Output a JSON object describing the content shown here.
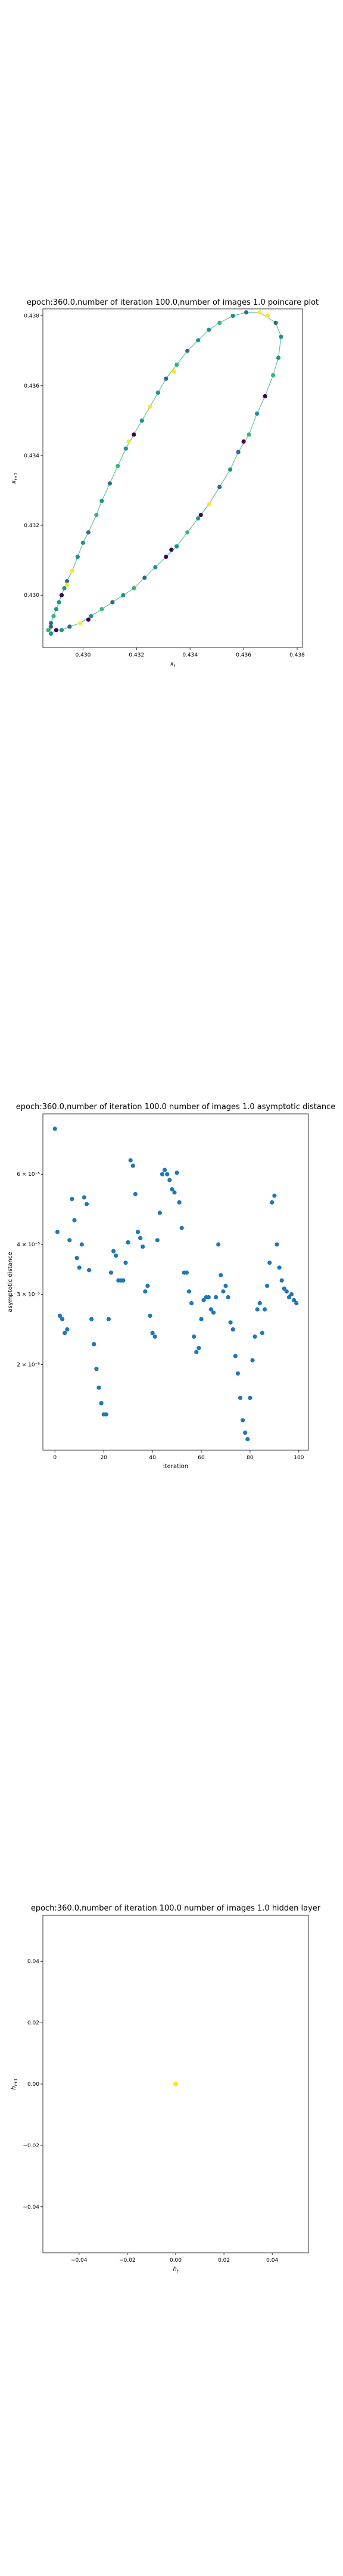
{
  "chart_data": [
    {
      "type": "scatter",
      "title": "epoch:360.0,number of iteration 100.0,number of images 1.0 poincare plot",
      "xlabel": "x_t",
      "ylabel": "x_{t+1}",
      "xlim": [
        0.4285,
        0.4382
      ],
      "ylim": [
        0.4285,
        0.4382
      ],
      "xticks": [
        0.43,
        0.432,
        0.434,
        0.436,
        0.438
      ],
      "yticks": [
        0.43,
        0.432,
        0.434,
        0.436,
        0.438
      ],
      "xtick_labels": [
        "0.430",
        "0.432",
        "0.434",
        "0.436",
        "0.438"
      ],
      "ytick_labels": [
        "0.430",
        "0.432",
        "0.434",
        "0.436",
        "0.438"
      ],
      "colormap": [
        "#440154",
        "#31688e",
        "#21918c",
        "#35b779",
        "#fde725"
      ],
      "loop_color": "#35b779",
      "points": [
        [
          0.4288,
          0.4292,
          0.2
        ],
        [
          0.4289,
          0.4294,
          0.8
        ],
        [
          0.429,
          0.4296,
          0.4
        ],
        [
          0.4291,
          0.4298,
          0.6
        ],
        [
          0.4292,
          0.43,
          0.1
        ],
        [
          0.4293,
          0.4302,
          0.5
        ],
        [
          0.4294,
          0.4304,
          0.3
        ],
        [
          0.4296,
          0.4307,
          0.9
        ],
        [
          0.4298,
          0.4311,
          0.4
        ],
        [
          0.43,
          0.4315,
          0.6
        ],
        [
          0.4302,
          0.4318,
          0.2
        ],
        [
          0.4305,
          0.4323,
          0.7
        ],
        [
          0.4307,
          0.4327,
          0.5
        ],
        [
          0.431,
          0.4332,
          0.3
        ],
        [
          0.4313,
          0.4337,
          0.8
        ],
        [
          0.4316,
          0.4342,
          0.4
        ],
        [
          0.4319,
          0.4346,
          0.1
        ],
        [
          0.4322,
          0.435,
          0.6
        ],
        [
          0.4325,
          0.4354,
          0.9
        ],
        [
          0.4328,
          0.4358,
          0.5
        ],
        [
          0.4331,
          0.4362,
          0.3
        ],
        [
          0.4335,
          0.4366,
          0.7
        ],
        [
          0.4339,
          0.437,
          0.2
        ],
        [
          0.4343,
          0.4373,
          0.6
        ],
        [
          0.4347,
          0.4376,
          0.4
        ],
        [
          0.4351,
          0.4378,
          0.8
        ],
        [
          0.4356,
          0.438,
          0.5
        ],
        [
          0.4361,
          0.4381,
          0.3
        ],
        [
          0.4366,
          0.4381,
          0.9
        ],
        [
          0.4372,
          0.4378,
          0.2
        ],
        [
          0.4374,
          0.4374,
          0.6
        ],
        [
          0.4373,
          0.4368,
          0.4
        ],
        [
          0.4371,
          0.4363,
          0.7
        ],
        [
          0.4368,
          0.4357,
          0.1
        ],
        [
          0.4365,
          0.4352,
          0.5
        ],
        [
          0.4362,
          0.4346,
          0.8
        ],
        [
          0.4358,
          0.4341,
          0.3
        ],
        [
          0.4355,
          0.4336,
          0.6
        ],
        [
          0.4351,
          0.4331,
          0.2
        ],
        [
          0.4347,
          0.4326,
          0.9
        ],
        [
          0.4343,
          0.4322,
          0.4
        ],
        [
          0.4339,
          0.4318,
          0.7
        ],
        [
          0.4335,
          0.4314,
          0.5
        ],
        [
          0.4331,
          0.4311,
          0.1
        ],
        [
          0.4327,
          0.4308,
          0.6
        ],
        [
          0.4323,
          0.4305,
          0.3
        ],
        [
          0.4319,
          0.4302,
          0.8
        ],
        [
          0.4315,
          0.43,
          0.4
        ],
        [
          0.4311,
          0.4298,
          0.2
        ],
        [
          0.4307,
          0.4296,
          0.7
        ],
        [
          0.4303,
          0.4294,
          0.5
        ],
        [
          0.4299,
          0.4292,
          0.9
        ],
        [
          0.4295,
          0.4291,
          0.3
        ],
        [
          0.4292,
          0.429,
          0.6
        ],
        [
          0.429,
          0.429,
          0.1
        ],
        [
          0.4288,
          0.4289,
          0.5
        ],
        [
          0.4287,
          0.429,
          0.8
        ],
        [
          0.4288,
          0.4291,
          0.2
        ],
        [
          0.4294,
          0.4303,
          0.9
        ],
        [
          0.4317,
          0.4344,
          0.95
        ],
        [
          0.4334,
          0.4364,
          0.92
        ],
        [
          0.4369,
          0.438,
          0.97
        ],
        [
          0.436,
          0.4344,
          0.1
        ],
        [
          0.4333,
          0.4313,
          0.05
        ],
        [
          0.4344,
          0.4323,
          0.0
        ],
        [
          0.4302,
          0.4293,
          0.03
        ]
      ]
    },
    {
      "type": "scatter",
      "title": "epoch:360.0,number of iteration 100.0  number of images 1.0 asymptotic distance",
      "xlabel": "iteration",
      "ylabel": "asymptotic distance",
      "xlim": [
        -4.95,
        103.95
      ],
      "yscale": "log",
      "ylim": [
        1.22e-05,
        8.5e-05
      ],
      "xticks": [
        0,
        20,
        40,
        60,
        80,
        100
      ],
      "xtick_labels": [
        "0",
        "20",
        "40",
        "60",
        "80",
        "100"
      ],
      "yticks": [
        2e-05,
        3e-05,
        4e-05,
        6e-05
      ],
      "ytick_labels": [
        "2 × 10⁻⁵",
        "3 × 10⁻⁵",
        "4 × 10⁻⁵",
        "6 × 10⁻⁵"
      ],
      "marker_color": "#1f77b4",
      "x": [
        0,
        1,
        2,
        3,
        4,
        5,
        6,
        7,
        8,
        9,
        10,
        11,
        12,
        13,
        14,
        15,
        16,
        17,
        18,
        19,
        20,
        21,
        22,
        23,
        24,
        25,
        26,
        27,
        28,
        29,
        30,
        31,
        32,
        33,
        34,
        35,
        36,
        37,
        38,
        39,
        40,
        41,
        42,
        43,
        44,
        45,
        46,
        47,
        48,
        49,
        50,
        51,
        52,
        53,
        54,
        55,
        56,
        57,
        58,
        59,
        60,
        61,
        62,
        63,
        64,
        65,
        66,
        67,
        68,
        69,
        70,
        71,
        72,
        73,
        74,
        75,
        76,
        77,
        78,
        79,
        80,
        81,
        82,
        83,
        84,
        85,
        86,
        87,
        88,
        89,
        90,
        91,
        92,
        93,
        94,
        95,
        96,
        97,
        98,
        99
      ],
      "y": [
        7.8e-05,
        4.3e-05,
        2.65e-05,
        2.6e-05,
        2.4e-05,
        2.45e-05,
        4.1e-05,
        5.2e-05,
        4.6e-05,
        3.7e-05,
        3.5e-05,
        4e-05,
        5.25e-05,
        5.05e-05,
        3.45e-05,
        2.6e-05,
        2.25e-05,
        1.95e-05,
        1.75e-05,
        1.6e-05,
        1.5e-05,
        1.5e-05,
        2.6e-05,
        3.4e-05,
        3.85e-05,
        3.75e-05,
        3.25e-05,
        3.25e-05,
        3.25e-05,
        3.6e-05,
        4.05e-05,
        6.5e-05,
        6.3e-05,
        5.35e-05,
        4.3e-05,
        4.15e-05,
        3.95e-05,
        3.05e-05,
        3.15e-05,
        2.65e-05,
        2.4e-05,
        2.35e-05,
        4.1e-05,
        4.8e-05,
        6e-05,
        6.15e-05,
        6e-05,
        5.8e-05,
        5.5e-05,
        5.4e-05,
        6.05e-05,
        5.1e-05,
        4.4e-05,
        3.4e-05,
        3.4e-05,
        3.05e-05,
        2.85e-05,
        2.35e-05,
        2.15e-05,
        2.2e-05,
        2.6e-05,
        2.9e-05,
        2.95e-05,
        2.95e-05,
        2.75e-05,
        2.7e-05,
        2.95e-05,
        4e-05,
        3.35e-05,
        3.05e-05,
        3.15e-05,
        2.95e-05,
        2.55e-05,
        2.45e-05,
        2.1e-05,
        1.9e-05,
        1.65e-05,
        1.45e-05,
        1.35e-05,
        1.3e-05,
        1.65e-05,
        2.05e-05,
        2.35e-05,
        2.75e-05,
        2.85e-05,
        2.4e-05,
        2.75e-05,
        3.15e-05,
        3.6e-05,
        5.1e-05,
        5.3e-05,
        4e-05,
        3.5e-05,
        3.25e-05,
        3.1e-05,
        3.05e-05,
        2.95e-05,
        3e-05,
        2.9e-05,
        2.85e-05
      ]
    },
    {
      "type": "scatter",
      "title": "epoch:360.0,number of iteration 100.0  number of images 1.0 hidden layer",
      "xlabel": "h_t",
      "ylabel": "h_{t+1}",
      "xlim": [
        -0.055,
        0.055
      ],
      "ylim": [
        -0.055,
        0.055
      ],
      "xticks": [
        -0.04,
        -0.02,
        0.0,
        0.02,
        0.04
      ],
      "yticks": [
        -0.04,
        -0.02,
        0.0,
        0.02,
        0.04
      ],
      "xtick_labels": [
        "−0.04",
        "−0.02",
        "0.00",
        "0.02",
        "0.04"
      ],
      "ytick_labels": [
        "−0.04",
        "−0.02",
        "0.00",
        "0.02",
        "0.04"
      ],
      "marker_color": "#fde725",
      "points": [
        [
          0.0,
          0.0
        ]
      ]
    }
  ]
}
